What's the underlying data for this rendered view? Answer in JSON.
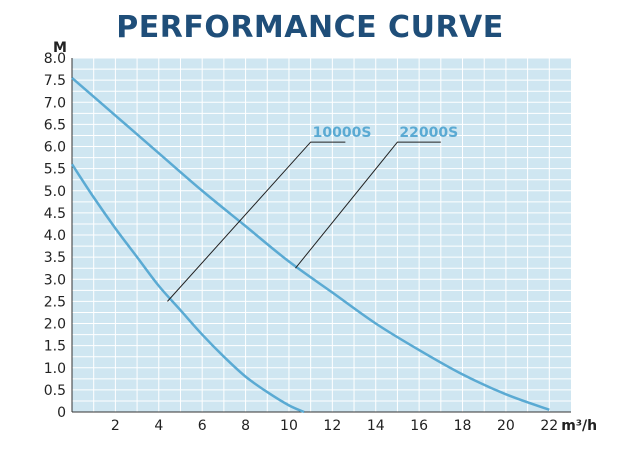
{
  "colors": {
    "plot_background": "#cfe6f1",
    "grid": "#ffffff",
    "axis": "#333333",
    "curve": "#5aaad3",
    "title": "#1f4e79",
    "leader_line": "#222222"
  },
  "chart_data": {
    "type": "line",
    "title": "PERFORMANCE CURVE",
    "ylabel": "M",
    "xlabel": "m³/h",
    "xlim": [
      0,
      23
    ],
    "ylim": [
      0,
      8.0
    ],
    "x_ticks": [
      2,
      4,
      6,
      8,
      10,
      12,
      14,
      16,
      18,
      20,
      22
    ],
    "x_tick_labels": [
      "2",
      "4",
      "6",
      "8",
      "10",
      "12",
      "14",
      "16",
      "18",
      "20",
      "22"
    ],
    "y_ticks": [
      0,
      0.5,
      1.0,
      1.5,
      2.0,
      2.5,
      3.0,
      3.5,
      4.0,
      4.5,
      5.0,
      5.5,
      6.0,
      6.5,
      7.0,
      7.5,
      8.0
    ],
    "y_tick_labels": [
      "0",
      "0.5",
      "1.0",
      "1.5",
      "2.0",
      "2.5",
      "3.0",
      "3.5",
      "4.0",
      "4.5",
      "5.0",
      "5.5",
      "6.0",
      "6.5",
      "7.0",
      "7.5",
      "8.0"
    ],
    "grid": true,
    "series": [
      {
        "name": "10000S",
        "x": [
          0,
          1,
          2,
          3,
          4,
          5,
          6,
          7,
          8,
          9,
          10,
          10.7
        ],
        "y": [
          5.6,
          4.85,
          4.15,
          3.5,
          2.85,
          2.3,
          1.75,
          1.25,
          0.8,
          0.45,
          0.15,
          0
        ],
        "label_anchor": [
          4.4,
          2.5
        ]
      },
      {
        "name": "22000S",
        "x": [
          0,
          2,
          4,
          6,
          8,
          10,
          12,
          14,
          16,
          18,
          20,
          22
        ],
        "y": [
          7.55,
          6.7,
          5.85,
          5.0,
          4.2,
          3.4,
          2.7,
          2.0,
          1.4,
          0.85,
          0.4,
          0.05
        ],
        "label_anchor": [
          10.3,
          3.25
        ]
      }
    ]
  }
}
